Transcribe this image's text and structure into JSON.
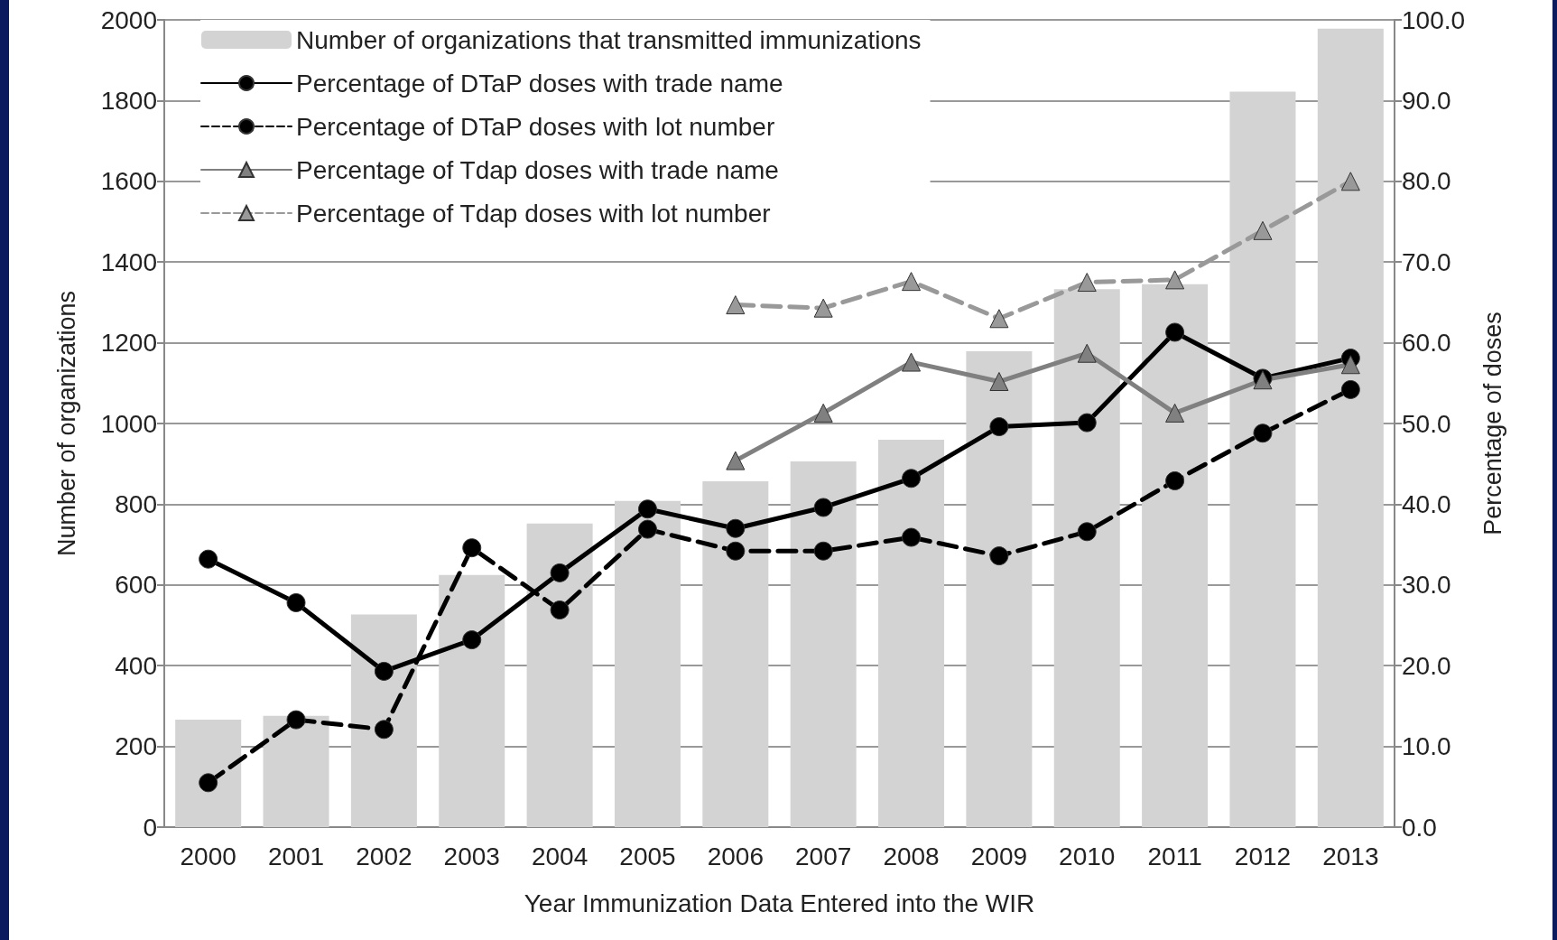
{
  "chart_data": {
    "type": "bar",
    "xlabel": "Year Immunization Data Entered into the WIR",
    "ylabel": "Number of organizations",
    "y2label": "Percentage of doses",
    "categories": [
      "2000",
      "2001",
      "2002",
      "2003",
      "2004",
      "2005",
      "2006",
      "2007",
      "2008",
      "2009",
      "2010",
      "2011",
      "2012",
      "2013"
    ],
    "series": [
      {
        "name": "Number of organizations that transmitted immunizations",
        "type": "bar",
        "color": "#d3d3d3",
        "values": [
          266,
          276,
          527,
          625,
          752,
          808,
          857,
          906,
          960,
          1179,
          1333,
          1345,
          1822,
          1978
        ]
      },
      {
        "name": "Percentage of DTaP doses with trade name",
        "type": "line",
        "axis": "y2",
        "color": "#000000",
        "marker": "circle",
        "line_style": "solid",
        "values": [
          33.2,
          27.8,
          19.3,
          23.2,
          31.5,
          39.4,
          37.0,
          39.6,
          43.2,
          49.6,
          50.1,
          61.3,
          55.6,
          58.1
        ]
      },
      {
        "name": "Percentage of DTaP doses with lot number",
        "type": "line",
        "axis": "y2",
        "color": "#000000",
        "marker": "circle",
        "line_style": "dashed",
        "values": [
          5.5,
          13.3,
          12.1,
          34.6,
          26.9,
          36.9,
          34.2,
          34.2,
          35.9,
          33.6,
          36.6,
          42.9,
          48.8,
          54.2
        ]
      },
      {
        "name": "Percentage of Tdap doses with trade name",
        "type": "line",
        "axis": "y2",
        "color": "#808080",
        "marker": "triangle",
        "line_style": "solid",
        "values": [
          null,
          null,
          null,
          null,
          null,
          null,
          45.4,
          51.3,
          57.6,
          55.2,
          58.7,
          51.3,
          55.4,
          57.3
        ]
      },
      {
        "name": "Percentage of Tdap doses with lot number",
        "type": "line",
        "axis": "y2",
        "color": "#999999",
        "marker": "triangle",
        "line_style": "dashed",
        "values": [
          null,
          null,
          null,
          null,
          null,
          null,
          64.7,
          64.3,
          67.6,
          63.0,
          67.5,
          67.8,
          73.9,
          80.0
        ]
      }
    ],
    "ylim": [
      0,
      2000
    ],
    "yticks": [
      0,
      200,
      400,
      600,
      800,
      1000,
      1200,
      1400,
      1600,
      1800,
      2000
    ],
    "y2lim": [
      0,
      100
    ],
    "y2ticks": [
      {
        "value": 0,
        "label": "0.0"
      },
      {
        "value": 10,
        "label": "10.0"
      },
      {
        "value": 20,
        "label": "20.0"
      },
      {
        "value": 30,
        "label": "30.0"
      },
      {
        "value": 40,
        "label": "40.0"
      },
      {
        "value": 50,
        "label": "50.0"
      },
      {
        "value": 60,
        "label": "60.0"
      },
      {
        "value": 70,
        "label": "70.0"
      },
      {
        "value": 80,
        "label": "80.0"
      },
      {
        "value": 90,
        "label": "90.0"
      },
      {
        "value": 100,
        "label": "100.0"
      }
    ],
    "grid": "y",
    "legend": "top left"
  }
}
